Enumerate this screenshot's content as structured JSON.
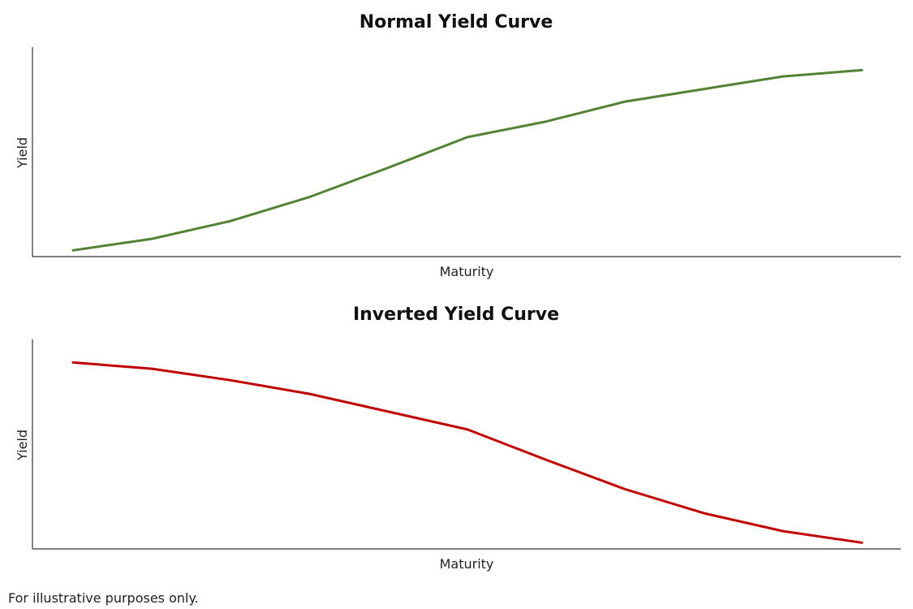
{
  "footnote": "For illustrative purposes only.",
  "chart_data": [
    {
      "type": "line",
      "title": "Normal Yield Curve",
      "xlabel": "Maturity",
      "ylabel": "Yield",
      "x": [
        1,
        2,
        3,
        4,
        5,
        6,
        7,
        8,
        9,
        10,
        11
      ],
      "ylim": [
        0,
        10
      ],
      "grid": false,
      "series": [
        {
          "color": "#548235",
          "values": [
            0.3,
            0.85,
            1.7,
            2.85,
            4.25,
            5.7,
            6.45,
            7.4,
            8.0,
            8.6,
            8.9
          ]
        }
      ]
    },
    {
      "type": "line",
      "title": "Inverted Yield Curve",
      "xlabel": "Maturity",
      "ylabel": "Yield",
      "x": [
        1,
        2,
        3,
        4,
        5,
        6,
        7,
        8,
        9,
        10,
        11
      ],
      "ylim": [
        0,
        10
      ],
      "grid": false,
      "series": [
        {
          "color": "#C00000",
          "values": [
            8.9,
            8.6,
            8.05,
            7.4,
            6.55,
            5.7,
            4.25,
            2.85,
            1.7,
            0.85,
            0.3
          ]
        }
      ]
    }
  ]
}
